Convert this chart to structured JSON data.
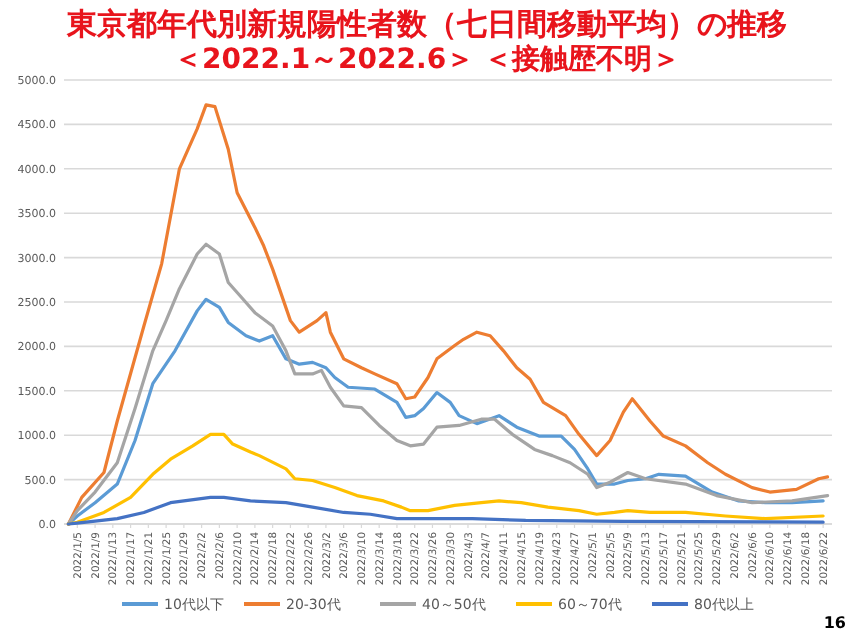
{
  "chart_data": {
    "type": "line",
    "title": "東京都年代別新規陽性者数（七日間移動平均）の推移",
    "subtitle": "＜2022.1～2022.6＞ ＜接触歴不明＞",
    "xlim": [
      "2022-01-02",
      "2022-06-24"
    ],
    "xticks": [
      {
        "value": "2022-01-05",
        "label": "2022/1/5"
      },
      {
        "value": "2022-01-09",
        "label": "2022/1/9"
      },
      {
        "value": "2022-01-13",
        "label": "2022/1/13"
      },
      {
        "value": "2022-01-17",
        "label": "2022/1/17"
      },
      {
        "value": "2022-01-21",
        "label": "2022/1/21"
      },
      {
        "value": "2022-01-25",
        "label": "2022/1/25"
      },
      {
        "value": "2022-01-29",
        "label": "2022/1/29"
      },
      {
        "value": "2022-02-02",
        "label": "2022/2/2"
      },
      {
        "value": "2022-02-06",
        "label": "2022/2/6"
      },
      {
        "value": "2022-02-10",
        "label": "2022/2/10"
      },
      {
        "value": "2022-02-14",
        "label": "2022/2/14"
      },
      {
        "value": "2022-02-18",
        "label": "2022/2/18"
      },
      {
        "value": "2022-02-22",
        "label": "2022/2/22"
      },
      {
        "value": "2022-02-26",
        "label": "2022/2/26"
      },
      {
        "value": "2022-03-02",
        "label": "2022/3/2"
      },
      {
        "value": "2022-03-06",
        "label": "2022/3/6"
      },
      {
        "value": "2022-03-10",
        "label": "2022/3/10"
      },
      {
        "value": "2022-03-14",
        "label": "2022/3/14"
      },
      {
        "value": "2022-03-18",
        "label": "2022/3/18"
      },
      {
        "value": "2022-03-22",
        "label": "2022/3/22"
      },
      {
        "value": "2022-03-26",
        "label": "2022/3/26"
      },
      {
        "value": "2022-03-30",
        "label": "2022/3/30"
      },
      {
        "value": "2022-04-03",
        "label": "2022/4/3"
      },
      {
        "value": "2022-04-07",
        "label": "2022/4/7"
      },
      {
        "value": "2022-04-11",
        "label": "2022/4/11"
      },
      {
        "value": "2022-04-15",
        "label": "2022/4/15"
      },
      {
        "value": "2022-04-19",
        "label": "2022/4/19"
      },
      {
        "value": "2022-04-23",
        "label": "2022/4/23"
      },
      {
        "value": "2022-04-27",
        "label": "2022/4/27"
      },
      {
        "value": "2022-05-01",
        "label": "2022/5/1"
      },
      {
        "value": "2022-05-05",
        "label": "2022/5/5"
      },
      {
        "value": "2022-05-09",
        "label": "2022/5/9"
      },
      {
        "value": "2022-05-13",
        "label": "2022/5/13"
      },
      {
        "value": "2022-05-17",
        "label": "2022/5/17"
      },
      {
        "value": "2022-05-21",
        "label": "2022/5/21"
      },
      {
        "value": "2022-05-25",
        "label": "2022/5/25"
      },
      {
        "value": "2022-05-29",
        "label": "2022/5/29"
      },
      {
        "value": "2022-06-02",
        "label": "2022/6/2"
      },
      {
        "value": "2022-06-06",
        "label": "2022/6/6"
      },
      {
        "value": "2022-06-10",
        "label": "2022/6/10"
      },
      {
        "value": "2022-06-14",
        "label": "2022/6/14"
      },
      {
        "value": "2022-06-18",
        "label": "2022/6/18"
      },
      {
        "value": "2022-06-22",
        "label": "2022/6/22"
      }
    ],
    "ylim": [
      0,
      5000
    ],
    "yticks": [
      {
        "value": 0,
        "label": "0.0"
      },
      {
        "value": 500,
        "label": "500.0"
      },
      {
        "value": 1000,
        "label": "1000.0"
      },
      {
        "value": 1500,
        "label": "1500.0"
      },
      {
        "value": 2000,
        "label": "2000.0"
      },
      {
        "value": 2500,
        "label": "2500.0"
      },
      {
        "value": 3000,
        "label": "3000.0"
      },
      {
        "value": 3500,
        "label": "3500.0"
      },
      {
        "value": 4000,
        "label": "4000.0"
      },
      {
        "value": 4500,
        "label": "4500.0"
      },
      {
        "value": 5000,
        "label": "5000.0"
      }
    ],
    "grid": "y",
    "legend": "bottom",
    "marker": "none",
    "series": [
      {
        "name": "10代以下",
        "color": "#5b9bd5",
        "x": [
          "2022-01-03",
          "2022-01-05",
          "2022-01-09",
          "2022-01-14",
          "2022-01-18",
          "2022-01-22",
          "2022-01-27",
          "2022-02-01",
          "2022-02-03",
          "2022-02-06",
          "2022-02-08",
          "2022-02-12",
          "2022-02-15",
          "2022-02-18",
          "2022-02-21",
          "2022-02-24",
          "2022-02-27",
          "2022-03-02",
          "2022-03-04",
          "2022-03-07",
          "2022-03-13",
          "2022-03-18",
          "2022-03-20",
          "2022-03-22",
          "2022-03-24",
          "2022-03-27",
          "2022-03-30",
          "2022-04-01",
          "2022-04-05",
          "2022-04-10",
          "2022-04-14",
          "2022-04-19",
          "2022-04-24",
          "2022-04-27",
          "2022-04-30",
          "2022-05-02",
          "2022-05-06",
          "2022-05-09",
          "2022-05-13",
          "2022-05-16",
          "2022-05-22",
          "2022-05-28",
          "2022-06-03",
          "2022-06-09",
          "2022-06-15",
          "2022-06-22"
        ],
        "values": [
          0,
          90,
          240,
          450,
          940,
          1580,
          1950,
          2400,
          2530,
          2440,
          2270,
          2120,
          2060,
          2120,
          1860,
          1800,
          1820,
          1760,
          1650,
          1540,
          1520,
          1370,
          1200,
          1220,
          1300,
          1480,
          1370,
          1220,
          1130,
          1220,
          1090,
          990,
          990,
          840,
          620,
          450,
          450,
          490,
          510,
          560,
          540,
          360,
          260,
          240,
          240,
          260
        ]
      },
      {
        "name": "20-30代",
        "color": "#ed7d31",
        "x": [
          "2022-01-03",
          "2022-01-06",
          "2022-01-11",
          "2022-01-14",
          "2022-01-20",
          "2022-01-24",
          "2022-01-28",
          "2022-02-01",
          "2022-02-03",
          "2022-02-05",
          "2022-02-08",
          "2022-02-10",
          "2022-02-14",
          "2022-02-16",
          "2022-02-18",
          "2022-02-22",
          "2022-02-24",
          "2022-02-28",
          "2022-03-02",
          "2022-03-03",
          "2022-03-06",
          "2022-03-10",
          "2022-03-13",
          "2022-03-18",
          "2022-03-20",
          "2022-03-22",
          "2022-03-25",
          "2022-03-27",
          "2022-03-31",
          "2022-04-02",
          "2022-04-05",
          "2022-04-08",
          "2022-04-11",
          "2022-04-14",
          "2022-04-17",
          "2022-04-20",
          "2022-04-25",
          "2022-04-28",
          "2022-05-02",
          "2022-05-05",
          "2022-05-08",
          "2022-05-10",
          "2022-05-14",
          "2022-05-17",
          "2022-05-22",
          "2022-05-27",
          "2022-05-31",
          "2022-06-06",
          "2022-06-10",
          "2022-06-16",
          "2022-06-21",
          "2022-06-23"
        ],
        "values": [
          0,
          300,
          580,
          1160,
          2230,
          2930,
          4000,
          4450,
          4720,
          4700,
          4220,
          3730,
          3340,
          3130,
          2870,
          2290,
          2160,
          2290,
          2380,
          2160,
          1860,
          1760,
          1690,
          1580,
          1410,
          1430,
          1650,
          1860,
          2010,
          2080,
          2160,
          2120,
          1950,
          1760,
          1630,
          1370,
          1220,
          1010,
          770,
          940,
          1260,
          1410,
          1160,
          990,
          880,
          690,
          560,
          410,
          360,
          390,
          510,
          530
        ]
      },
      {
        "name": "40～50代",
        "color": "#a5a5a5",
        "x": [
          "2022-01-03",
          "2022-01-05",
          "2022-01-09",
          "2022-01-14",
          "2022-01-18",
          "2022-01-22",
          "2022-01-25",
          "2022-01-28",
          "2022-02-01",
          "2022-02-03",
          "2022-02-06",
          "2022-02-08",
          "2022-02-11",
          "2022-02-14",
          "2022-02-18",
          "2022-02-21",
          "2022-02-23",
          "2022-02-27",
          "2022-03-01",
          "2022-03-03",
          "2022-03-06",
          "2022-03-10",
          "2022-03-14",
          "2022-03-18",
          "2022-03-21",
          "2022-03-24",
          "2022-03-27",
          "2022-04-01",
          "2022-04-06",
          "2022-04-09",
          "2022-04-13",
          "2022-04-18",
          "2022-04-22",
          "2022-04-26",
          "2022-04-30",
          "2022-05-02",
          "2022-05-05",
          "2022-05-09",
          "2022-05-13",
          "2022-05-22",
          "2022-05-29",
          "2022-06-06",
          "2022-06-15",
          "2022-06-23"
        ],
        "values": [
          0,
          150,
          360,
          690,
          1300,
          1950,
          2290,
          2650,
          3040,
          3150,
          3040,
          2720,
          2550,
          2380,
          2230,
          1950,
          1690,
          1690,
          1730,
          1540,
          1330,
          1310,
          1110,
          940,
          880,
          900,
          1090,
          1110,
          1180,
          1180,
          1010,
          840,
          770,
          690,
          560,
          410,
          470,
          580,
          510,
          450,
          320,
          240,
          260,
          320
        ]
      },
      {
        "name": "60～70代",
        "color": "#ffc000",
        "x": [
          "2022-01-03",
          "2022-01-05",
          "2022-01-11",
          "2022-01-17",
          "2022-01-22",
          "2022-01-26",
          "2022-01-31",
          "2022-02-04",
          "2022-02-07",
          "2022-02-09",
          "2022-02-13",
          "2022-02-15",
          "2022-02-21",
          "2022-02-23",
          "2022-02-27",
          "2022-03-04",
          "2022-03-09",
          "2022-03-15",
          "2022-03-19",
          "2022-03-21",
          "2022-03-25",
          "2022-03-31",
          "2022-04-06",
          "2022-04-10",
          "2022-04-15",
          "2022-04-21",
          "2022-04-28",
          "2022-05-02",
          "2022-05-06",
          "2022-05-09",
          "2022-05-14",
          "2022-05-22",
          "2022-05-31",
          "2022-06-09",
          "2022-06-22"
        ],
        "values": [
          0,
          20,
          130,
          300,
          560,
          730,
          880,
          1010,
          1010,
          900,
          810,
          770,
          620,
          510,
          490,
          410,
          320,
          260,
          190,
          150,
          150,
          210,
          240,
          260,
          240,
          190,
          150,
          110,
          130,
          150,
          130,
          130,
          90,
          60,
          90
        ]
      },
      {
        "name": "80代以上",
        "color": "#4472c4",
        "x": [
          "2022-01-03",
          "2022-01-05",
          "2022-01-14",
          "2022-01-20",
          "2022-01-26",
          "2022-02-04",
          "2022-02-07",
          "2022-02-13",
          "2022-02-21",
          "2022-02-27",
          "2022-03-06",
          "2022-03-12",
          "2022-03-18",
          "2022-04-04",
          "2022-04-16",
          "2022-05-08",
          "2022-06-22"
        ],
        "values": [
          0,
          10,
          60,
          130,
          240,
          300,
          300,
          260,
          240,
          190,
          130,
          110,
          60,
          60,
          40,
          30,
          20
        ]
      }
    ],
    "annotations": [
      "16"
    ]
  }
}
